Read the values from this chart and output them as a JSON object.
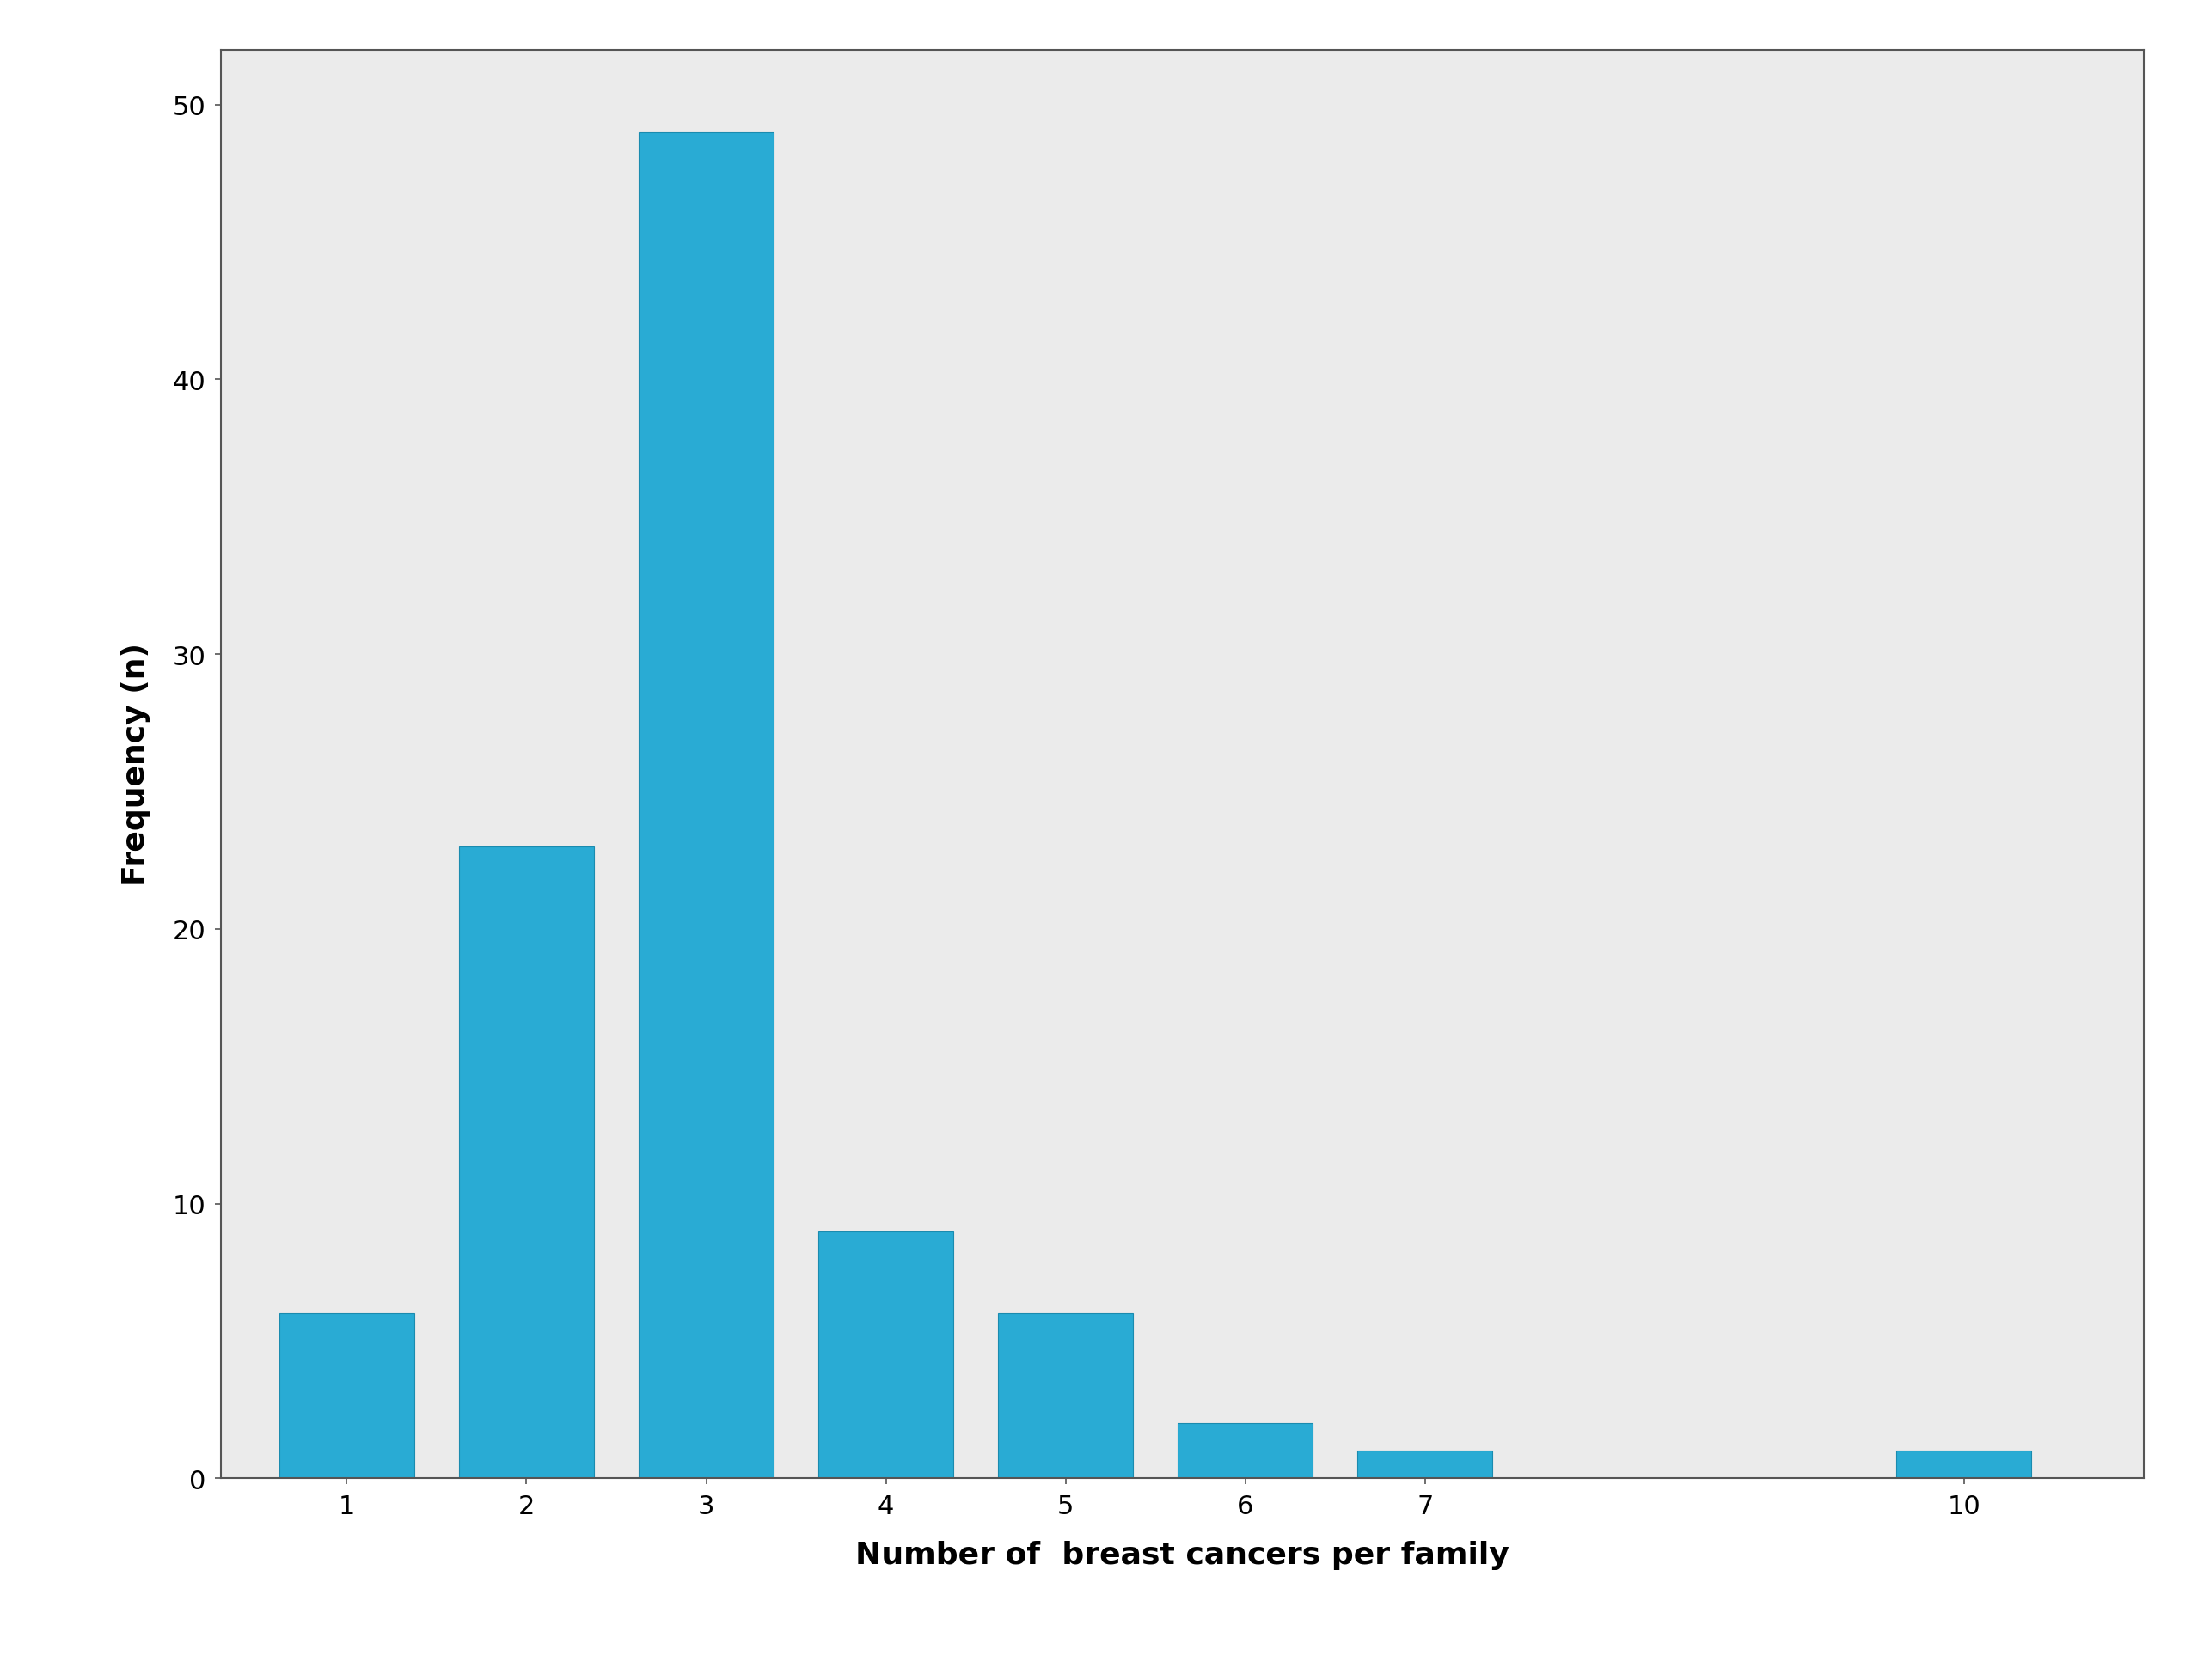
{
  "categories": [
    1,
    2,
    3,
    4,
    5,
    6,
    7,
    10
  ],
  "values": [
    6,
    23,
    49,
    9,
    6,
    2,
    1,
    1
  ],
  "bar_color": "#29ABD4",
  "bar_edge_color": "#1A8BAF",
  "xlabel": "Number of  breast cancers per family",
  "ylabel": "Frequency (n)",
  "ylim": [
    0,
    52
  ],
  "yticks": [
    0,
    10,
    20,
    30,
    40,
    50
  ],
  "xtick_labels": [
    "1",
    "2",
    "3",
    "4",
    "5",
    "6",
    "7",
    "10"
  ],
  "figure_background_color": "#FFFFFF",
  "plot_background_color": "#EBEBEB",
  "spine_color": "#555555",
  "xlabel_fontsize": 26,
  "ylabel_fontsize": 26,
  "tick_fontsize": 22,
  "bar_width": 0.75,
  "bar_positions": [
    1,
    2,
    3,
    4,
    5,
    6,
    7,
    10
  ],
  "xlim": [
    0.3,
    11.0
  ]
}
